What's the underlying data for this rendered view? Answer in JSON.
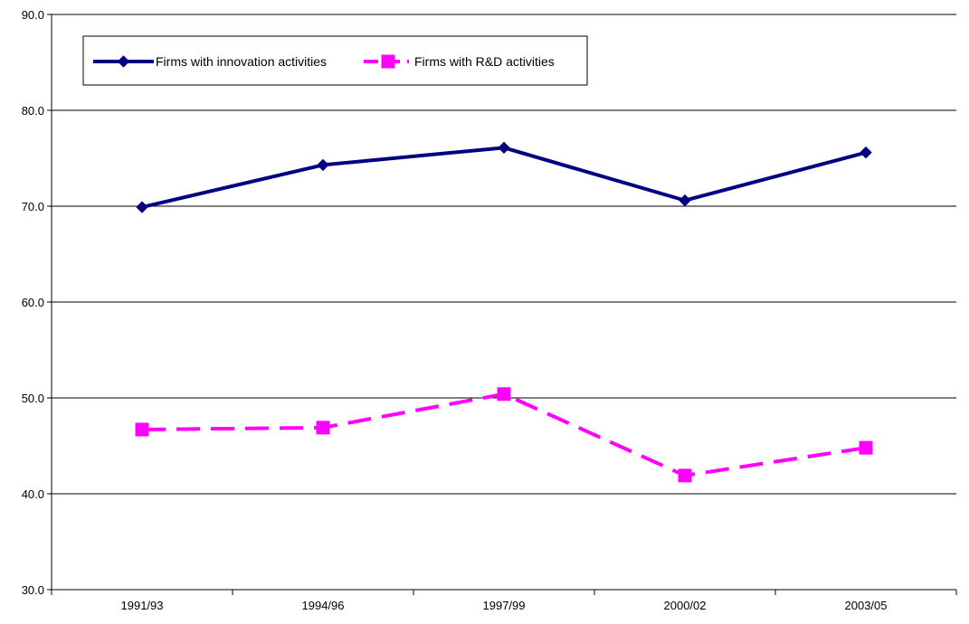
{
  "chart_data": {
    "type": "line",
    "title": "",
    "xlabel": "",
    "ylabel": "",
    "categories": [
      "1991/93",
      "1994/96",
      "1997/99",
      "2000/02",
      "2003/05"
    ],
    "ylim": [
      30.0,
      90.0
    ],
    "yticks": [
      "30.0",
      "40.0",
      "50.0",
      "60.0",
      "70.0",
      "80.0",
      "90.0"
    ],
    "grid": true,
    "legend_position": "top-left",
    "series": [
      {
        "name": "Firms with innovation activities",
        "values": [
          69.9,
          74.3,
          76.1,
          70.6,
          75.6
        ],
        "color": "#000080",
        "marker": "diamond",
        "line_style": "solid"
      },
      {
        "name": "Firms with R&D activities",
        "values": [
          46.7,
          46.9,
          50.4,
          41.9,
          44.8
        ],
        "color": "#ff00ff",
        "marker": "square",
        "line_style": "dashed"
      }
    ]
  }
}
